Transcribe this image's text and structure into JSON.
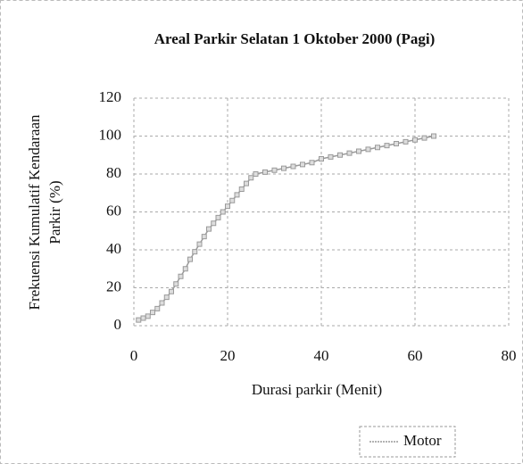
{
  "chart_data": {
    "type": "line",
    "title": "Areal Parkir Selatan 1 Oktober 2000 (Pagi)",
    "xlabel": "Durasi parkir (Menit)",
    "ylabel": [
      "Frekuensi Kumulatif Kendaraan",
      "Parkir (%)"
    ],
    "x": [
      1,
      2,
      3,
      4,
      5,
      6,
      7,
      8,
      9,
      10,
      11,
      12,
      13,
      14,
      15,
      16,
      17,
      18,
      19,
      20,
      21,
      22,
      23,
      24,
      25,
      26,
      28,
      30,
      32,
      34,
      36,
      38,
      40,
      42,
      44,
      46,
      48,
      50,
      52,
      54,
      56,
      58,
      60,
      62,
      64
    ],
    "series": [
      {
        "name": "Motor",
        "color": "#9a9a9a",
        "values": [
          3,
          4,
          5,
          7,
          9,
          12,
          15,
          18,
          22,
          26,
          30,
          35,
          39,
          43,
          47,
          51,
          54,
          57,
          60,
          63,
          66,
          69,
          72,
          75,
          78,
          80,
          81,
          82,
          83,
          84,
          85,
          86,
          88,
          89,
          90,
          91,
          92,
          93,
          94,
          95,
          96,
          97,
          98,
          99,
          100
        ]
      }
    ],
    "xlim": [
      0,
      80
    ],
    "xticks": [
      0,
      20,
      40,
      60,
      80
    ],
    "ylim": [
      0,
      120
    ],
    "yticks": [
      0,
      20,
      40,
      60,
      80,
      100,
      120
    ],
    "grid": true,
    "legend": "bottom"
  }
}
